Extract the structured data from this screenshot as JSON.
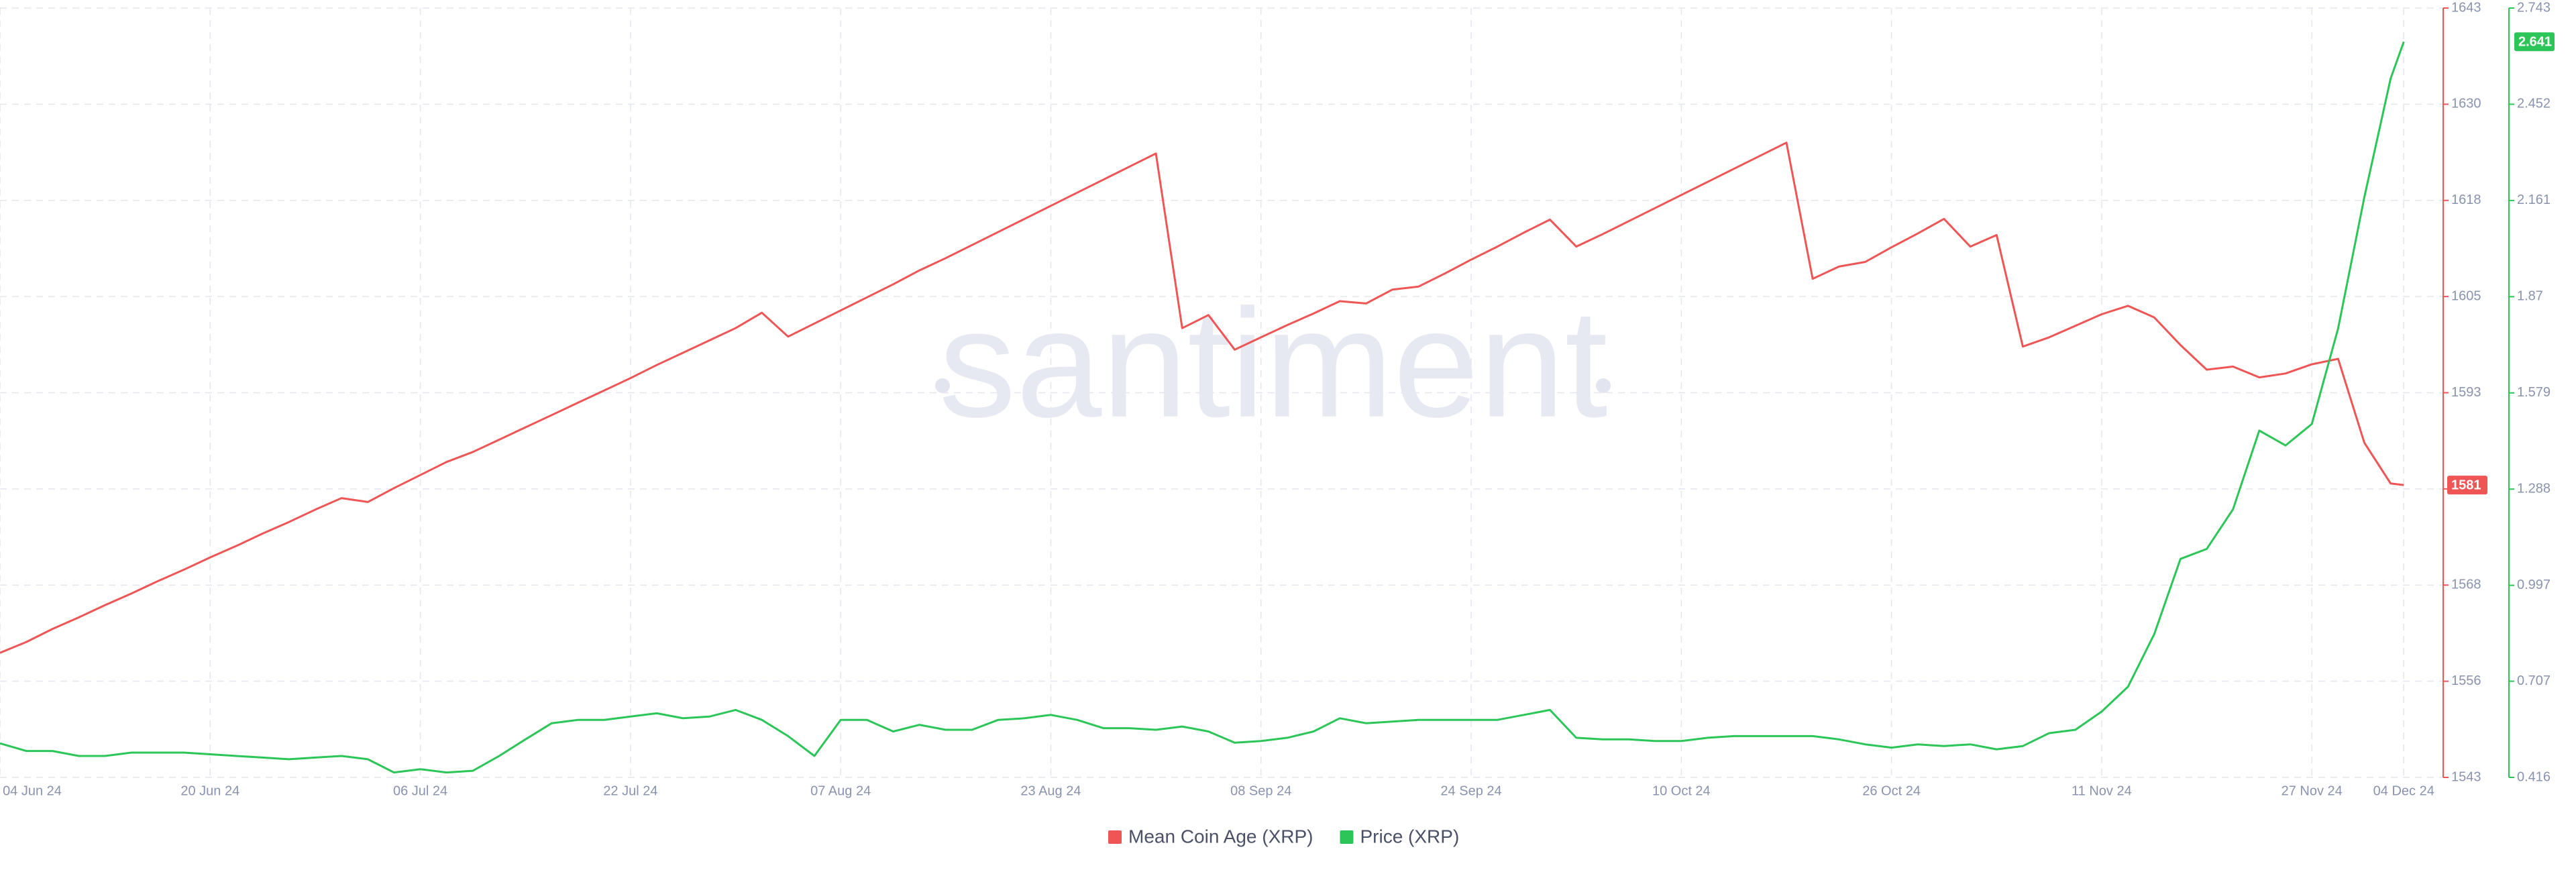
{
  "chart_data": {
    "type": "line",
    "watermark": "santiment",
    "x": [
      "2024-06-04",
      "2024-06-06",
      "2024-06-08",
      "2024-06-10",
      "2024-06-12",
      "2024-06-14",
      "2024-06-16",
      "2024-06-18",
      "2024-06-20",
      "2024-06-22",
      "2024-06-24",
      "2024-06-26",
      "2024-06-28",
      "2024-06-30",
      "2024-07-02",
      "2024-07-04",
      "2024-07-06",
      "2024-07-08",
      "2024-07-10",
      "2024-07-12",
      "2024-07-14",
      "2024-07-16",
      "2024-07-18",
      "2024-07-20",
      "2024-07-22",
      "2024-07-24",
      "2024-07-26",
      "2024-07-28",
      "2024-07-30",
      "2024-08-01",
      "2024-08-03",
      "2024-08-05",
      "2024-08-07",
      "2024-08-09",
      "2024-08-11",
      "2024-08-13",
      "2024-08-15",
      "2024-08-17",
      "2024-08-19",
      "2024-08-21",
      "2024-08-23",
      "2024-08-25",
      "2024-08-27",
      "2024-08-29",
      "2024-08-31",
      "2024-09-02",
      "2024-09-04",
      "2024-09-06",
      "2024-09-08",
      "2024-09-10",
      "2024-09-12",
      "2024-09-14",
      "2024-09-16",
      "2024-09-18",
      "2024-09-20",
      "2024-09-22",
      "2024-09-24",
      "2024-09-26",
      "2024-09-28",
      "2024-09-30",
      "2024-10-02",
      "2024-10-04",
      "2024-10-06",
      "2024-10-08",
      "2024-10-10",
      "2024-10-12",
      "2024-10-14",
      "2024-10-16",
      "2024-10-18",
      "2024-10-20",
      "2024-10-22",
      "2024-10-24",
      "2024-10-26",
      "2024-10-28",
      "2024-10-30",
      "2024-11-01",
      "2024-11-03",
      "2024-11-05",
      "2024-11-07",
      "2024-11-09",
      "2024-11-11",
      "2024-11-13",
      "2024-11-15",
      "2024-11-17",
      "2024-11-19",
      "2024-11-21",
      "2024-11-23",
      "2024-11-25",
      "2024-11-27",
      "2024-11-29",
      "2024-12-01",
      "2024-12-03",
      "2024-12-04"
    ],
    "xlim": [
      "2024-06-04",
      "2024-12-07"
    ],
    "xticks": [
      {
        "value": "2024-06-04",
        "label": "04 Jun 24"
      },
      {
        "value": "2024-06-20",
        "label": "20 Jun 24"
      },
      {
        "value": "2024-07-06",
        "label": "06 Jul 24"
      },
      {
        "value": "2024-07-22",
        "label": "22 Jul 24"
      },
      {
        "value": "2024-08-07",
        "label": "07 Aug 24"
      },
      {
        "value": "2024-08-23",
        "label": "23 Aug 24"
      },
      {
        "value": "2024-09-08",
        "label": "08 Sep 24"
      },
      {
        "value": "2024-09-24",
        "label": "24 Sep 24"
      },
      {
        "value": "2024-10-10",
        "label": "10 Oct 24"
      },
      {
        "value": "2024-10-26",
        "label": "26 Oct 24"
      },
      {
        "value": "2024-11-11",
        "label": "11 Nov 24"
      },
      {
        "value": "2024-11-27",
        "label": "27 Nov 24"
      },
      {
        "value": "2024-12-04",
        "label": "04 Dec 24"
      }
    ],
    "ylim": [
      1543,
      1643
    ],
    "yticks": [
      1543,
      {
        "value": 1555.5,
        "label": "1556"
      },
      1568,
      {
        "value": 1580.5,
        "label": "1581"
      },
      1593,
      {
        "value": 1605.5,
        "label": "1605"
      },
      1618,
      {
        "value": 1630.5,
        "label": "1630"
      },
      1643
    ],
    "y2lim": [
      0.416,
      2.743
    ],
    "y2ticks": [
      0.416,
      0.707,
      0.997,
      1.288,
      1.579,
      1.87,
      2.161,
      2.452,
      2.743
    ],
    "grid": true,
    "series": [
      {
        "name": "Mean Coin Age (XRP)",
        "color": "#f05555",
        "values": [
          1559.2,
          1560.6,
          1562.3,
          1563.8,
          1565.4,
          1566.9,
          1568.5,
          1570.0,
          1571.6,
          1573.1,
          1574.7,
          1576.2,
          1577.8,
          1579.3,
          1578.8,
          1580.6,
          1582.3,
          1584.0,
          1585.3,
          1586.9,
          1588.5,
          1590.1,
          1591.7,
          1593.3,
          1594.9,
          1596.6,
          1598.2,
          1599.8,
          1601.4,
          1603.4,
          1600.3,
          1602.0,
          1603.7,
          1605.4,
          1607.1,
          1608.9,
          1610.5,
          1612.2,
          1613.9,
          1615.6,
          1617.3,
          1619.0,
          1620.7,
          1622.4,
          1624.1,
          1601.4,
          1603.1,
          1598.6,
          1600.2,
          1601.8,
          1603.3,
          1604.9,
          1604.6,
          1606.4,
          1606.8,
          1608.5,
          1610.3,
          1612.0,
          1613.8,
          1615.5,
          1612.0,
          1613.6,
          1615.3,
          1617.0,
          1618.7,
          1620.4,
          1622.1,
          1623.8,
          1625.5,
          1607.8,
          1609.4,
          1610.0,
          1611.9,
          1613.7,
          1615.6,
          1612.0,
          1613.5,
          1599.0,
          1600.2,
          1601.7,
          1603.2,
          1604.3,
          1602.8,
          1599.2,
          1596.0,
          1596.4,
          1595.0,
          1595.5,
          1596.7,
          1597.4,
          1586.5,
          1581.2,
          1581
        ]
      },
      {
        "name": "Price (XRP)",
        "color": "#2bc657",
        "axis": "y2",
        "values": [
          0.519,
          0.496,
          0.496,
          0.481,
          0.481,
          0.491,
          0.491,
          0.491,
          0.486,
          0.481,
          0.476,
          0.471,
          0.476,
          0.481,
          0.471,
          0.431,
          0.441,
          0.431,
          0.436,
          0.481,
          0.531,
          0.58,
          0.59,
          0.59,
          0.6,
          0.61,
          0.595,
          0.6,
          0.62,
          0.59,
          0.541,
          0.481,
          0.59,
          0.59,
          0.555,
          0.575,
          0.56,
          0.56,
          0.59,
          0.595,
          0.605,
          0.59,
          0.565,
          0.565,
          0.56,
          0.57,
          0.555,
          0.521,
          0.526,
          0.536,
          0.555,
          0.595,
          0.58,
          0.585,
          0.59,
          0.59,
          0.59,
          0.59,
          0.605,
          0.62,
          0.536,
          0.531,
          0.531,
          0.526,
          0.526,
          0.536,
          0.541,
          0.541,
          0.541,
          0.541,
          0.531,
          0.516,
          0.506,
          0.516,
          0.511,
          0.516,
          0.501,
          0.511,
          0.55,
          0.56,
          0.615,
          0.69,
          0.849,
          1.077,
          1.107,
          1.227,
          1.465,
          1.42,
          1.485,
          1.774,
          2.171,
          2.53,
          2.641
        ]
      }
    ]
  }
}
